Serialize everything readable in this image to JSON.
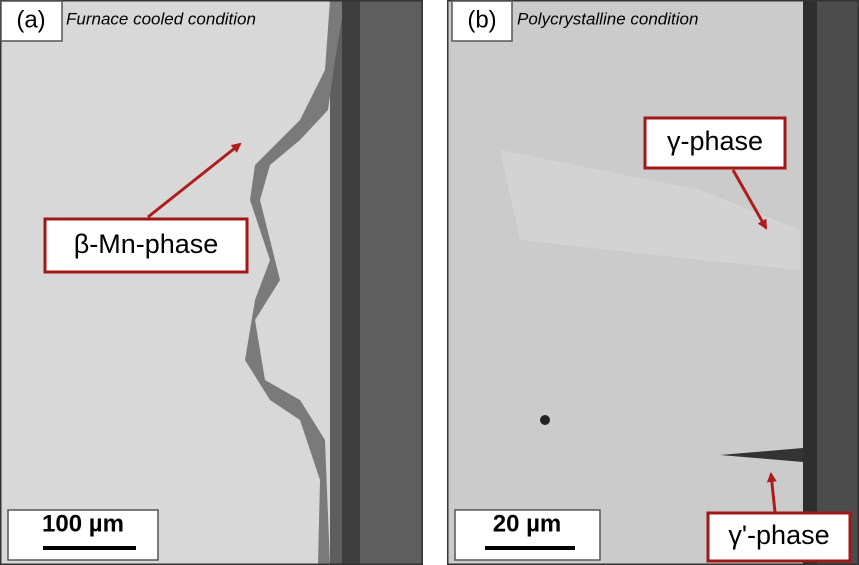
{
  "panels": [
    {
      "label": "(a)",
      "caption": "Furnace cooled condition",
      "annotations": [
        "β-Mn-phase"
      ],
      "scale_bar": "100 µm"
    },
    {
      "label": "(b)",
      "caption": "Polycrystalline condition",
      "annotations": [
        "γ-phase",
        "γ'-phase"
      ],
      "scale_bar": "20 µm"
    }
  ]
}
